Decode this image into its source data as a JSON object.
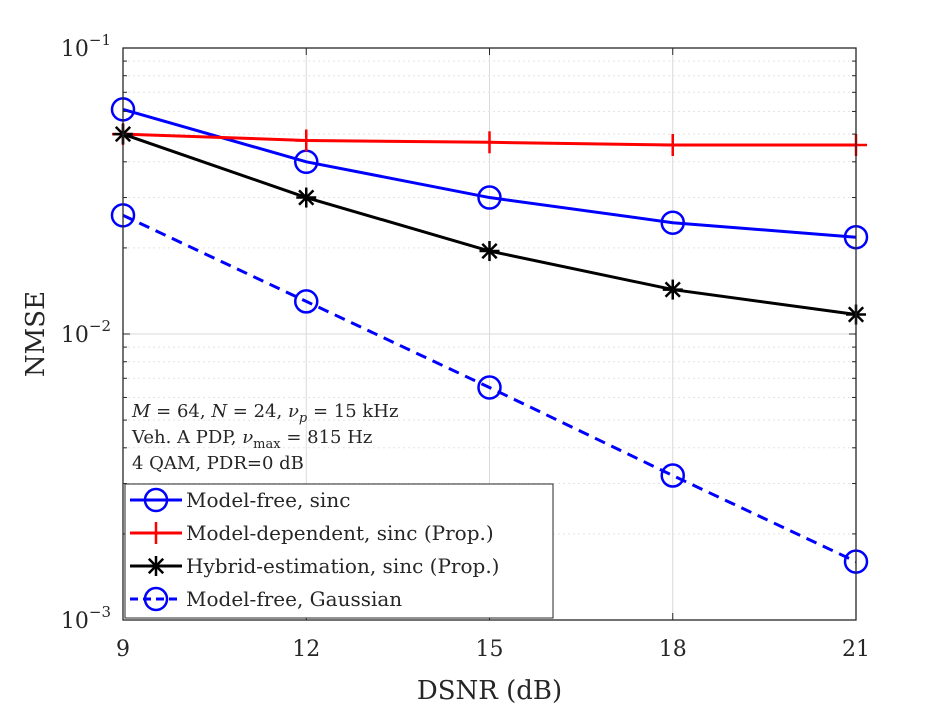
{
  "chart_data": {
    "type": "line",
    "xlabel": "DSNR (dB)",
    "ylabel": "NMSE",
    "yscale": "log",
    "xlim": [
      9,
      21
    ],
    "ylim": [
      0.001,
      0.1
    ],
    "x_ticks": [
      9,
      12,
      15,
      18,
      21
    ],
    "x_tick_labels": [
      "9",
      "12",
      "15",
      "18",
      "21"
    ],
    "y_ticks": [
      0.001,
      0.01,
      0.1
    ],
    "y_tick_labels": [
      {
        "base": "10",
        "exp": "−3"
      },
      {
        "base": "10",
        "exp": "−2"
      },
      {
        "base": "10",
        "exp": "−1"
      }
    ],
    "grid": true,
    "x": [
      9,
      12,
      15,
      18,
      21
    ],
    "series": [
      {
        "name": "Model-free, sinc",
        "color": "#0000ff",
        "marker": "circle",
        "dash": "solid",
        "values": [
          0.061,
          0.04,
          0.03,
          0.0245,
          0.0218
        ]
      },
      {
        "name": "Model-dependent, sinc (Prop.)",
        "color": "#ff0000",
        "marker": "plus",
        "dash": "solid",
        "values": [
          0.05,
          0.0475,
          0.0468,
          0.0458,
          0.0458
        ]
      },
      {
        "name": "Hybrid-estimation, sinc (Prop.)",
        "color": "#000000",
        "marker": "asterisk",
        "dash": "solid",
        "values": [
          0.05,
          0.03,
          0.0195,
          0.0143,
          0.0117
        ]
      },
      {
        "name": "Model-free, Gaussian",
        "color": "#0000ff",
        "marker": "circle",
        "dash": "dashed",
        "values": [
          0.026,
          0.013,
          0.0065,
          0.0032,
          0.0016
        ]
      }
    ],
    "annotations": [
      "M = 64, N = 24, ν_p = 15 kHz",
      "Veh. A PDP, ν_max = 815 Hz",
      "4 QAM, PDR=0 dB"
    ],
    "legend_position": "bottom-left"
  }
}
